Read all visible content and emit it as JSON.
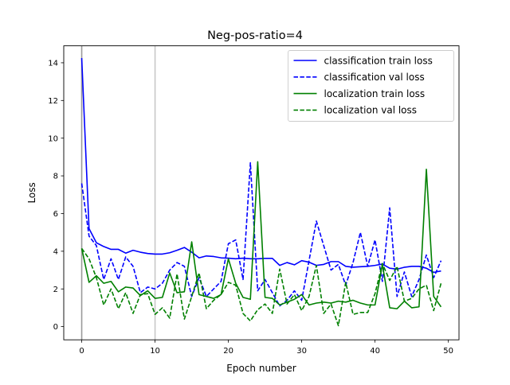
{
  "chart_data": {
    "type": "line",
    "title": "Neg-pos-ratio=4",
    "xlabel": "Epoch number",
    "ylabel": "Loss",
    "xlim": [
      -2.45,
      51.45
    ],
    "ylim": [
      -0.7,
      14.9
    ],
    "xticks": [
      0,
      10,
      20,
      30,
      40,
      50
    ],
    "yticks": [
      0,
      2,
      4,
      6,
      8,
      10,
      12,
      14
    ],
    "vlines": [
      0,
      10
    ],
    "legend_position": "top-right",
    "grid": false,
    "x": [
      0,
      1,
      2,
      3,
      4,
      5,
      6,
      7,
      8,
      9,
      10,
      11,
      12,
      13,
      14,
      15,
      16,
      17,
      18,
      19,
      20,
      21,
      22,
      23,
      24,
      25,
      26,
      27,
      28,
      29,
      30,
      31,
      32,
      33,
      34,
      35,
      36,
      37,
      38,
      39,
      40,
      41,
      42,
      43,
      44,
      45,
      46,
      47,
      48,
      49
    ],
    "series": [
      {
        "name": "classification train loss",
        "color": "#0000ff",
        "dash": "solid",
        "values": [
          14.25,
          5.2,
          4.45,
          4.25,
          4.1,
          4.1,
          3.9,
          4.05,
          3.95,
          3.88,
          3.85,
          3.85,
          3.92,
          4.05,
          4.2,
          3.95,
          3.65,
          3.75,
          3.72,
          3.65,
          3.63,
          3.6,
          3.63,
          3.6,
          3.6,
          3.62,
          3.62,
          3.25,
          3.4,
          3.28,
          3.5,
          3.42,
          3.25,
          3.3,
          3.45,
          3.45,
          3.2,
          3.15,
          3.18,
          3.2,
          3.25,
          3.32,
          3.1,
          3.05,
          3.15,
          3.2,
          3.2,
          3.1,
          2.88,
          2.95
        ]
      },
      {
        "name": "classification val loss",
        "color": "#0000ff",
        "dash": "dashed",
        "values": [
          7.6,
          4.8,
          4.3,
          2.5,
          3.6,
          2.5,
          3.7,
          3.2,
          1.8,
          2.1,
          2.0,
          2.3,
          3.0,
          3.4,
          3.2,
          1.6,
          2.6,
          1.6,
          2.0,
          2.4,
          4.4,
          4.6,
          2.5,
          8.7,
          1.9,
          2.5,
          1.8,
          1.1,
          1.4,
          1.9,
          1.4,
          3.5,
          5.6,
          4.3,
          3.0,
          3.3,
          2.2,
          3.4,
          5.0,
          3.2,
          4.6,
          2.4,
          6.3,
          1.6,
          2.9,
          1.6,
          2.5,
          3.8,
          2.6,
          3.5
        ]
      },
      {
        "name": "localization train loss",
        "color": "#008000",
        "dash": "solid",
        "values": [
          4.15,
          2.35,
          2.7,
          2.3,
          2.4,
          1.85,
          2.1,
          2.05,
          1.65,
          1.9,
          1.5,
          1.55,
          2.85,
          1.8,
          1.85,
          4.5,
          1.7,
          1.6,
          1.5,
          1.7,
          3.6,
          2.3,
          1.55,
          1.45,
          8.75,
          1.55,
          1.5,
          1.15,
          1.3,
          1.45,
          1.7,
          1.15,
          1.25,
          1.3,
          1.25,
          1.35,
          1.3,
          1.4,
          1.25,
          1.15,
          1.15,
          3.3,
          1.0,
          0.95,
          1.35,
          1.0,
          1.05,
          8.35,
          1.6,
          1.05
        ]
      },
      {
        "name": "localization val loss",
        "color": "#008000",
        "dash": "dashed",
        "values": [
          4.15,
          3.6,
          2.6,
          1.15,
          2.0,
          0.95,
          1.8,
          0.7,
          1.7,
          1.75,
          0.65,
          1.0,
          0.45,
          2.8,
          0.4,
          1.6,
          2.85,
          0.95,
          1.4,
          1.7,
          2.35,
          2.2,
          0.7,
          0.3,
          0.9,
          1.2,
          0.7,
          3.05,
          1.2,
          1.7,
          0.85,
          1.6,
          3.25,
          0.7,
          1.2,
          0.05,
          2.35,
          0.65,
          0.75,
          0.75,
          1.75,
          3.35,
          2.45,
          3.2,
          1.35,
          1.5,
          2.0,
          2.2,
          0.85,
          2.3
        ]
      }
    ]
  }
}
